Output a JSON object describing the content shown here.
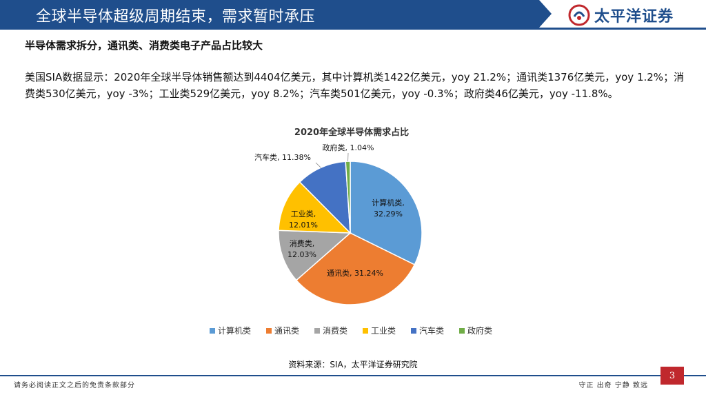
{
  "header": {
    "title": "全球半导体超级周期结束，需求暂时承压",
    "logo_text": "太平洋证券",
    "brand_color": "#1f4e8c"
  },
  "content": {
    "subtitle": "半导体需求拆分，通讯类、消费类电子产品占比较大",
    "paragraph": "美国SIA数据显示：2020年全球半导体销售额达到4404亿美元，其中计算机类1422亿美元，yoy 21.2%；通讯类1376亿美元，yoy 1.2%；消费类530亿美元，yoy -3%；工业类529亿美元，yoy 8.2%；汽车类501亿美元，yoy -0.3%；政府类46亿美元，yoy -11.8%。"
  },
  "chart_data": {
    "type": "pie",
    "title": "2020年全球半导体需求占比",
    "slices": [
      {
        "label": "计算机类",
        "value": 32.29,
        "display": "32.29%",
        "color": "#5b9bd5"
      },
      {
        "label": "通讯类",
        "value": 31.24,
        "display": "31.24%",
        "color": "#ed7d31"
      },
      {
        "label": "消费类",
        "value": 12.03,
        "display": "12.03%",
        "color": "#a5a5a5"
      },
      {
        "label": "工业类",
        "value": 12.01,
        "display": "12.01%",
        "color": "#ffc000"
      },
      {
        "label": "汽车类",
        "value": 11.38,
        "display": "11.38%",
        "color": "#4472c4"
      },
      {
        "label": "政府类",
        "value": 1.04,
        "display": "1.04%",
        "color": "#70ad47"
      }
    ],
    "legend": [
      "计算机类",
      "通讯类",
      "消费类",
      "工业类",
      "汽车类",
      "政府类"
    ],
    "legend_position": "bottom"
  },
  "source": "资料来源：SIA，太平洋证券研究院",
  "footer": {
    "disclaimer": "请务必阅读正文之后的免责条款部分",
    "motto": "守正 出奇 宁静 致远",
    "page_number": "3",
    "page_color": "#c0282d"
  }
}
